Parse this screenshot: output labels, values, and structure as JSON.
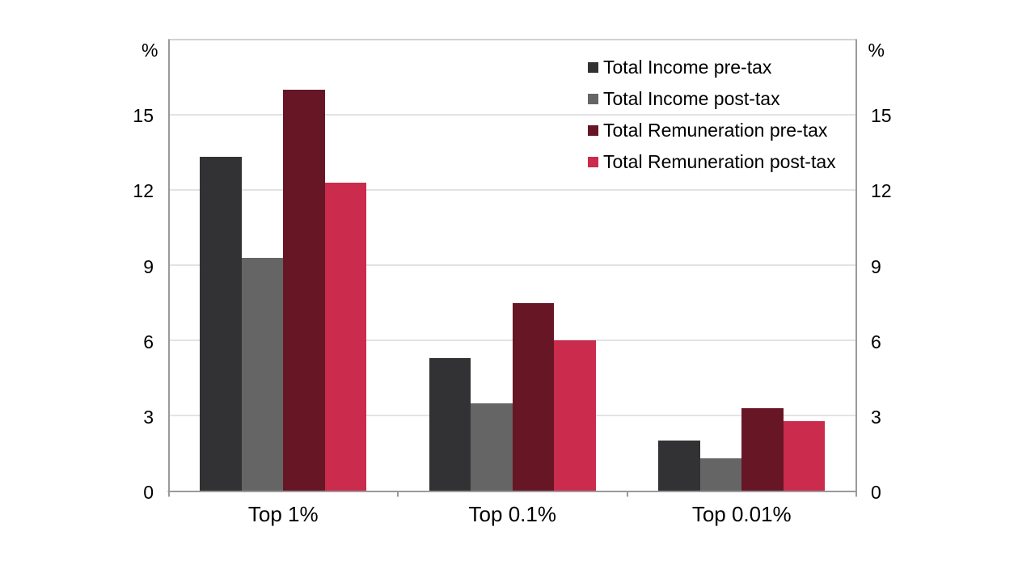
{
  "chart_data": {
    "type": "bar",
    "categories": [
      "Top 1%",
      "Top 0.1%",
      "Top 0.01%"
    ],
    "series": [
      {
        "name": "Total Income pre-tax",
        "color": "#323133",
        "values": [
          13.3,
          5.3,
          2.0
        ]
      },
      {
        "name": "Total Income post-tax",
        "color": "#666566",
        "values": [
          9.3,
          3.5,
          1.3
        ]
      },
      {
        "name": "Total Remuneration pre-tax",
        "color": "#671625",
        "values": [
          16.0,
          7.5,
          3.3
        ]
      },
      {
        "name": "Total Remuneration post-tax",
        "color": "#CB2B4D",
        "values": [
          12.3,
          6.0,
          2.8
        ]
      }
    ],
    "y_unit_label": "%",
    "yticks": [
      0,
      3,
      6,
      9,
      12,
      15
    ],
    "ylim": [
      0,
      18
    ],
    "grid": true,
    "dual_y_axis_labels": true,
    "legend_position": "top-right",
    "colors": {
      "background": "#ffffff",
      "text": "#000000",
      "axis_line": "#9a9a9a",
      "gridline": "#e3e3e3",
      "top_border": "#d2d2d2"
    }
  }
}
